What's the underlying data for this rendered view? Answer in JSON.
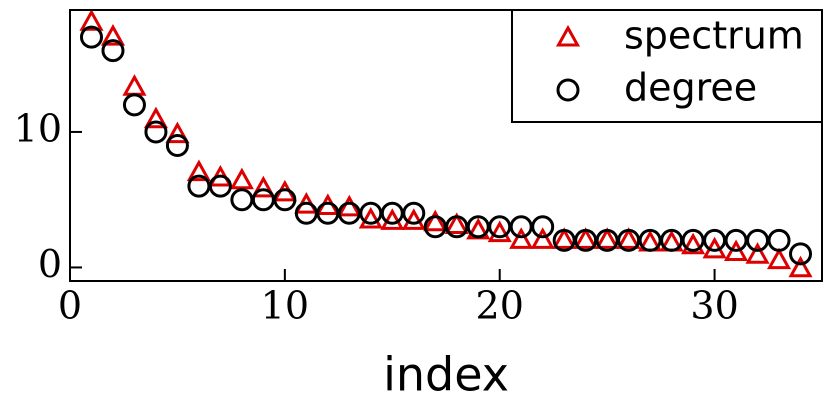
{
  "chart_data": {
    "type": "scatter",
    "xlabel": "index",
    "x": [
      1,
      2,
      3,
      4,
      5,
      6,
      7,
      8,
      9,
      10,
      11,
      12,
      13,
      14,
      15,
      16,
      17,
      18,
      19,
      20,
      21,
      22,
      23,
      24,
      25,
      26,
      27,
      28,
      29,
      30,
      31,
      32,
      33,
      34
    ],
    "series": [
      {
        "name": "spectrum",
        "color": "#dd0000",
        "marker": "triangle",
        "values": [
          18.1,
          17.0,
          13.3,
          10.9,
          9.8,
          7.0,
          6.6,
          6.4,
          5.8,
          5.5,
          4.6,
          4.5,
          4.4,
          3.5,
          3.4,
          3.4,
          3.3,
          3.1,
          2.7,
          2.5,
          2.0,
          2.0,
          2.0,
          2.0,
          2.0,
          2.0,
          1.8,
          1.8,
          1.6,
          1.3,
          1.1,
          0.9,
          0.5,
          -0.1
        ]
      },
      {
        "name": "degree",
        "color": "#000000",
        "marker": "circle",
        "values": [
          17,
          16,
          12,
          10,
          9,
          6,
          6,
          5,
          5,
          5,
          4,
          4,
          4,
          4,
          4,
          4,
          3,
          3,
          3,
          3,
          3,
          3,
          2,
          2,
          2,
          2,
          2,
          2,
          2,
          2,
          2,
          2,
          2,
          1
        ]
      }
    ],
    "xlim": [
      0,
      35
    ],
    "ylim": [
      -1,
      19
    ],
    "xticks": [
      0,
      10,
      20,
      30
    ],
    "yticks": [
      0,
      10
    ],
    "legend": "upper right",
    "grid": false
  }
}
